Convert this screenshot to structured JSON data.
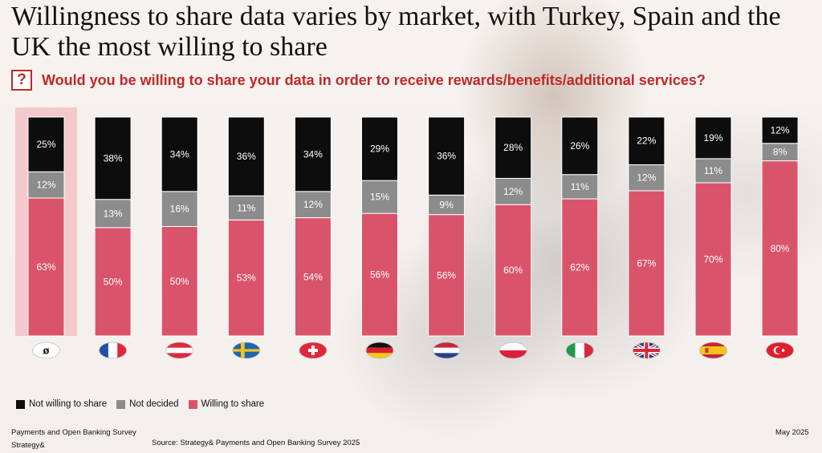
{
  "title": "Willingness to share data varies by market, with Turkey, Spain and the UK the most willing to share",
  "question_icon": "?",
  "question": "Would you be willing to share your data in order to receive rewards/benefits/additional services?",
  "colors": {
    "not_willing": "#0d0d0d",
    "not_decided": "#8c8c8c",
    "willing": "#d9546b",
    "highlight": "#f4c9cd",
    "accent": "#c0282b"
  },
  "chart_data": {
    "type": "bar",
    "stacked": true,
    "categories": [
      "ø",
      "France",
      "Austria",
      "Sweden",
      "Switzerland",
      "Germany",
      "Netherlands",
      "Poland",
      "Italy",
      "UK",
      "Spain",
      "Turkey"
    ],
    "category_icons": [
      "average-badge",
      "france-flag-icon",
      "austria-flag-icon",
      "sweden-flag-icon",
      "switzerland-flag-icon",
      "germany-flag-icon",
      "netherlands-flag-icon",
      "poland-flag-icon",
      "italy-flag-icon",
      "uk-flag-icon",
      "spain-flag-icon",
      "turkey-flag-icon"
    ],
    "highlight_category": 0,
    "series": [
      {
        "name": "Willing to share",
        "values": [
          63,
          50,
          50,
          53,
          54,
          56,
          56,
          60,
          62,
          67,
          70,
          80
        ]
      },
      {
        "name": "Not decided",
        "values": [
          12,
          13,
          16,
          11,
          12,
          15,
          9,
          12,
          11,
          12,
          11,
          8
        ]
      },
      {
        "name": "Not willing to share",
        "values": [
          25,
          38,
          34,
          36,
          34,
          29,
          36,
          28,
          26,
          22,
          19,
          12
        ]
      }
    ],
    "value_suffix": "%",
    "legend": [
      "Not willing to share",
      "Not decided",
      "Willing to share"
    ],
    "legend_position": "bottom-left",
    "ylim": [
      0,
      100
    ]
  },
  "footer": {
    "survey": "Payments and Open Banking Survey",
    "brand": "Strategy&",
    "source": "Source: Strategy& Payments and Open Banking Survey 2025",
    "date": "May 2025"
  }
}
